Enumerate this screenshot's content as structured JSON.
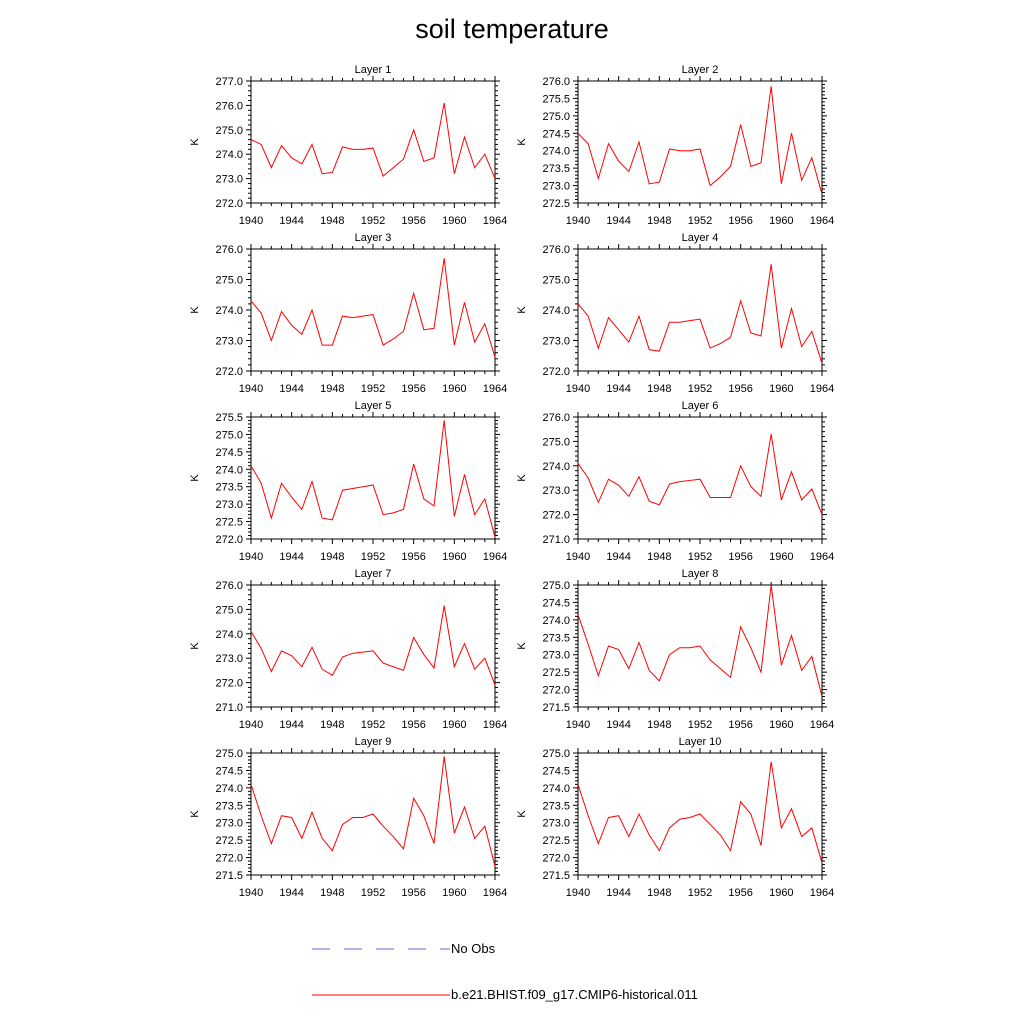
{
  "title": "soil temperature",
  "colors": {
    "model": "#ff0000",
    "obs": "#6a6acd",
    "axis": "#000000"
  },
  "legend": {
    "obs_label": "No Obs",
    "model_label": "b.e21.BHIST.f09_g17.CMIP6-historical.011"
  },
  "chart_data": [
    {
      "type": "line",
      "title": "Layer 1",
      "ylabel": "K",
      "xlim": [
        1940,
        1964
      ],
      "xticks": [
        1940,
        1944,
        1948,
        1952,
        1956,
        1960,
        1964
      ],
      "ylim": [
        272.0,
        277.0
      ],
      "yticks": [
        272.0,
        273.0,
        274.0,
        275.0,
        276.0,
        277.0
      ],
      "ydec": 1,
      "x": [
        1940,
        1941,
        1942,
        1943,
        1944,
        1945,
        1946,
        1947,
        1948,
        1949,
        1950,
        1951,
        1952,
        1953,
        1954,
        1955,
        1956,
        1957,
        1958,
        1959,
        1960,
        1961,
        1962,
        1963,
        1964
      ],
      "series": [
        {
          "name": "b.e21.BHIST.f09_g17.CMIP6-historical.011",
          "values": [
            274.6,
            274.4,
            273.45,
            274.35,
            273.85,
            273.6,
            274.4,
            273.2,
            273.25,
            274.3,
            274.2,
            274.2,
            274.25,
            273.1,
            273.45,
            273.8,
            275.0,
            273.7,
            273.85,
            276.1,
            273.2,
            274.7,
            273.45,
            274.0,
            273.0
          ]
        }
      ]
    },
    {
      "type": "line",
      "title": "Layer 2",
      "ylabel": "K",
      "xlim": [
        1940,
        1964
      ],
      "xticks": [
        1940,
        1944,
        1948,
        1952,
        1956,
        1960,
        1964
      ],
      "ylim": [
        272.5,
        276.0
      ],
      "yticks": [
        272.5,
        273.0,
        273.5,
        274.0,
        274.5,
        275.0,
        275.5,
        276.0
      ],
      "ydec": 1,
      "x": [
        1940,
        1941,
        1942,
        1943,
        1944,
        1945,
        1946,
        1947,
        1948,
        1949,
        1950,
        1951,
        1952,
        1953,
        1954,
        1955,
        1956,
        1957,
        1958,
        1959,
        1960,
        1961,
        1962,
        1963,
        1964
      ],
      "series": [
        {
          "name": "b.e21.BHIST.f09_g17.CMIP6-historical.011",
          "values": [
            274.5,
            274.2,
            273.2,
            274.2,
            273.7,
            273.4,
            274.25,
            273.05,
            273.1,
            274.05,
            274.0,
            274.0,
            274.05,
            273.0,
            273.25,
            273.55,
            274.75,
            273.55,
            273.65,
            275.85,
            273.05,
            274.5,
            273.15,
            273.8,
            272.75
          ]
        }
      ]
    },
    {
      "type": "line",
      "title": "Layer 3",
      "ylabel": "K",
      "xlim": [
        1940,
        1964
      ],
      "xticks": [
        1940,
        1944,
        1948,
        1952,
        1956,
        1960,
        1964
      ],
      "ylim": [
        272.0,
        276.0
      ],
      "yticks": [
        272.0,
        273.0,
        274.0,
        275.0,
        276.0
      ],
      "ydec": 1,
      "x": [
        1940,
        1941,
        1942,
        1943,
        1944,
        1945,
        1946,
        1947,
        1948,
        1949,
        1950,
        1951,
        1952,
        1953,
        1954,
        1955,
        1956,
        1957,
        1958,
        1959,
        1960,
        1961,
        1962,
        1963,
        1964
      ],
      "series": [
        {
          "name": "b.e21.BHIST.f09_g17.CMIP6-historical.011",
          "values": [
            274.3,
            273.9,
            273.0,
            273.95,
            273.5,
            273.2,
            274.0,
            272.85,
            272.85,
            273.8,
            273.75,
            273.8,
            273.85,
            272.85,
            273.05,
            273.3,
            274.55,
            273.35,
            273.4,
            275.7,
            272.85,
            274.25,
            272.95,
            273.55,
            272.45
          ]
        }
      ]
    },
    {
      "type": "line",
      "title": "Layer 4",
      "ylabel": "K",
      "xlim": [
        1940,
        1964
      ],
      "xticks": [
        1940,
        1944,
        1948,
        1952,
        1956,
        1960,
        1964
      ],
      "ylim": [
        272.0,
        276.0
      ],
      "yticks": [
        272.0,
        273.0,
        274.0,
        275.0,
        276.0
      ],
      "ydec": 1,
      "x": [
        1940,
        1941,
        1942,
        1943,
        1944,
        1945,
        1946,
        1947,
        1948,
        1949,
        1950,
        1951,
        1952,
        1953,
        1954,
        1955,
        1956,
        1957,
        1958,
        1959,
        1960,
        1961,
        1962,
        1963,
        1964
      ],
      "series": [
        {
          "name": "b.e21.BHIST.f09_g17.CMIP6-historical.011",
          "values": [
            274.2,
            273.8,
            272.75,
            273.75,
            273.35,
            272.95,
            273.8,
            272.7,
            272.65,
            273.6,
            273.6,
            273.65,
            273.7,
            272.75,
            272.9,
            273.1,
            274.3,
            273.25,
            273.15,
            275.5,
            272.75,
            274.05,
            272.8,
            273.3,
            272.25
          ]
        }
      ]
    },
    {
      "type": "line",
      "title": "Layer 5",
      "ylabel": "K",
      "xlim": [
        1940,
        1964
      ],
      "xticks": [
        1940,
        1944,
        1948,
        1952,
        1956,
        1960,
        1964
      ],
      "ylim": [
        272.0,
        275.5
      ],
      "yticks": [
        272.0,
        272.5,
        273.0,
        273.5,
        274.0,
        274.5,
        275.0,
        275.5
      ],
      "ydec": 1,
      "x": [
        1940,
        1941,
        1942,
        1943,
        1944,
        1945,
        1946,
        1947,
        1948,
        1949,
        1950,
        1951,
        1952,
        1953,
        1954,
        1955,
        1956,
        1957,
        1958,
        1959,
        1960,
        1961,
        1962,
        1963,
        1964
      ],
      "series": [
        {
          "name": "b.e21.BHIST.f09_g17.CMIP6-historical.011",
          "values": [
            274.1,
            273.6,
            272.6,
            273.6,
            273.2,
            272.85,
            273.65,
            272.6,
            272.55,
            273.4,
            273.45,
            273.5,
            273.55,
            272.7,
            272.75,
            272.85,
            274.15,
            273.15,
            272.95,
            275.4,
            272.65,
            273.85,
            272.7,
            273.15,
            272.05
          ]
        }
      ]
    },
    {
      "type": "line",
      "title": "Layer 6",
      "ylabel": "K",
      "xlim": [
        1940,
        1964
      ],
      "xticks": [
        1940,
        1944,
        1948,
        1952,
        1956,
        1960,
        1964
      ],
      "ylim": [
        271.0,
        276.0
      ],
      "yticks": [
        271.0,
        272.0,
        273.0,
        274.0,
        275.0,
        276.0
      ],
      "ydec": 1,
      "x": [
        1940,
        1941,
        1942,
        1943,
        1944,
        1945,
        1946,
        1947,
        1948,
        1949,
        1950,
        1951,
        1952,
        1953,
        1954,
        1955,
        1956,
        1957,
        1958,
        1959,
        1960,
        1961,
        1962,
        1963,
        1964
      ],
      "series": [
        {
          "name": "b.e21.BHIST.f09_g17.CMIP6-historical.011",
          "values": [
            274.1,
            273.5,
            272.5,
            273.45,
            273.2,
            272.75,
            273.55,
            272.55,
            272.4,
            273.25,
            273.35,
            273.4,
            273.45,
            272.7,
            272.7,
            272.7,
            274.0,
            273.15,
            272.75,
            275.3,
            272.6,
            273.75,
            272.6,
            273.05,
            272.0
          ]
        }
      ]
    },
    {
      "type": "line",
      "title": "Layer 7",
      "ylabel": "K",
      "xlim": [
        1940,
        1964
      ],
      "xticks": [
        1940,
        1944,
        1948,
        1952,
        1956,
        1960,
        1964
      ],
      "ylim": [
        271.0,
        276.0
      ],
      "yticks": [
        271.0,
        272.0,
        273.0,
        274.0,
        275.0,
        276.0
      ],
      "ydec": 1,
      "x": [
        1940,
        1941,
        1942,
        1943,
        1944,
        1945,
        1946,
        1947,
        1948,
        1949,
        1950,
        1951,
        1952,
        1953,
        1954,
        1955,
        1956,
        1957,
        1958,
        1959,
        1960,
        1961,
        1962,
        1963,
        1964
      ],
      "series": [
        {
          "name": "b.e21.BHIST.f09_g17.CMIP6-historical.011",
          "values": [
            274.1,
            273.4,
            272.45,
            273.3,
            273.1,
            272.65,
            273.45,
            272.55,
            272.3,
            273.05,
            273.2,
            273.25,
            273.3,
            272.8,
            272.65,
            272.5,
            273.85,
            273.15,
            272.6,
            275.15,
            272.65,
            273.6,
            272.55,
            273.0,
            271.9
          ]
        }
      ]
    },
    {
      "type": "line",
      "title": "Layer 8",
      "ylabel": "K",
      "xlim": [
        1940,
        1964
      ],
      "xticks": [
        1940,
        1944,
        1948,
        1952,
        1956,
        1960,
        1964
      ],
      "ylim": [
        271.5,
        275.0
      ],
      "yticks": [
        271.5,
        272.0,
        272.5,
        273.0,
        273.5,
        274.0,
        274.5,
        275.0
      ],
      "ydec": 1,
      "x": [
        1940,
        1941,
        1942,
        1943,
        1944,
        1945,
        1946,
        1947,
        1948,
        1949,
        1950,
        1951,
        1952,
        1953,
        1954,
        1955,
        1956,
        1957,
        1958,
        1959,
        1960,
        1961,
        1962,
        1963,
        1964
      ],
      "series": [
        {
          "name": "b.e21.BHIST.f09_g17.CMIP6-historical.011",
          "values": [
            274.15,
            273.3,
            272.4,
            273.25,
            273.15,
            272.6,
            273.35,
            272.55,
            272.25,
            273.0,
            273.2,
            273.2,
            273.25,
            272.85,
            272.6,
            272.35,
            273.8,
            273.2,
            272.5,
            275.0,
            272.7,
            273.55,
            272.55,
            272.95,
            271.8
          ]
        }
      ]
    },
    {
      "type": "line",
      "title": "Layer 9",
      "ylabel": "K",
      "xlim": [
        1940,
        1964
      ],
      "xticks": [
        1940,
        1944,
        1948,
        1952,
        1956,
        1960,
        1964
      ],
      "ylim": [
        271.5,
        275.0
      ],
      "yticks": [
        271.5,
        272.0,
        272.5,
        273.0,
        273.5,
        274.0,
        274.5,
        275.0
      ],
      "ydec": 1,
      "x": [
        1940,
        1941,
        1942,
        1943,
        1944,
        1945,
        1946,
        1947,
        1948,
        1949,
        1950,
        1951,
        1952,
        1953,
        1954,
        1955,
        1956,
        1957,
        1958,
        1959,
        1960,
        1961,
        1962,
        1963,
        1964
      ],
      "series": [
        {
          "name": "b.e21.BHIST.f09_g17.CMIP6-historical.011",
          "values": [
            274.1,
            273.2,
            272.4,
            273.2,
            273.15,
            272.55,
            273.3,
            272.55,
            272.2,
            272.95,
            273.15,
            273.15,
            273.25,
            272.9,
            272.6,
            272.25,
            273.7,
            273.2,
            272.4,
            274.9,
            272.7,
            273.45,
            272.55,
            272.9,
            271.75
          ]
        }
      ]
    },
    {
      "type": "line",
      "title": "Layer 10",
      "ylabel": "K",
      "xlim": [
        1940,
        1964
      ],
      "xticks": [
        1940,
        1944,
        1948,
        1952,
        1956,
        1960,
        1964
      ],
      "ylim": [
        271.5,
        275.0
      ],
      "yticks": [
        271.5,
        272.0,
        272.5,
        273.0,
        273.5,
        274.0,
        274.5,
        275.0
      ],
      "ydec": 1,
      "x": [
        1940,
        1941,
        1942,
        1943,
        1944,
        1945,
        1946,
        1947,
        1948,
        1949,
        1950,
        1951,
        1952,
        1953,
        1954,
        1955,
        1956,
        1957,
        1958,
        1959,
        1960,
        1961,
        1962,
        1963,
        1964
      ],
      "series": [
        {
          "name": "b.e21.BHIST.f09_g17.CMIP6-historical.011",
          "values": [
            274.1,
            273.2,
            272.4,
            273.15,
            273.2,
            272.6,
            273.25,
            272.65,
            272.2,
            272.85,
            273.1,
            273.15,
            273.25,
            272.95,
            272.65,
            272.2,
            273.6,
            273.25,
            272.35,
            274.75,
            272.85,
            273.4,
            272.6,
            272.85,
            271.85
          ]
        }
      ]
    }
  ]
}
